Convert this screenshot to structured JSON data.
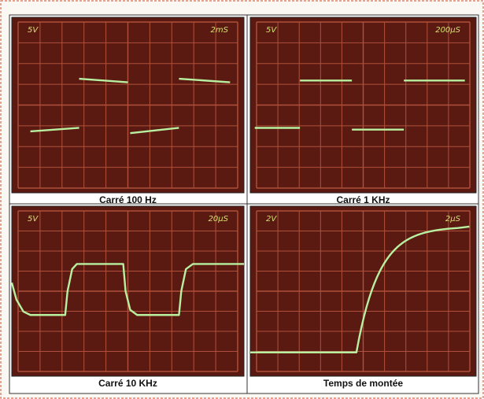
{
  "panels": [
    {
      "volts": "5V",
      "time": "2mS",
      "caption": "Carré 100 Hz"
    },
    {
      "volts": "5V",
      "time": "200µS",
      "caption": "Carré 1 KHz"
    },
    {
      "volts": "5V",
      "time": "20µS",
      "caption": "Carré 10 KHz"
    },
    {
      "volts": "2V",
      "time": "2µS",
      "caption": "Temps de montée"
    }
  ]
}
